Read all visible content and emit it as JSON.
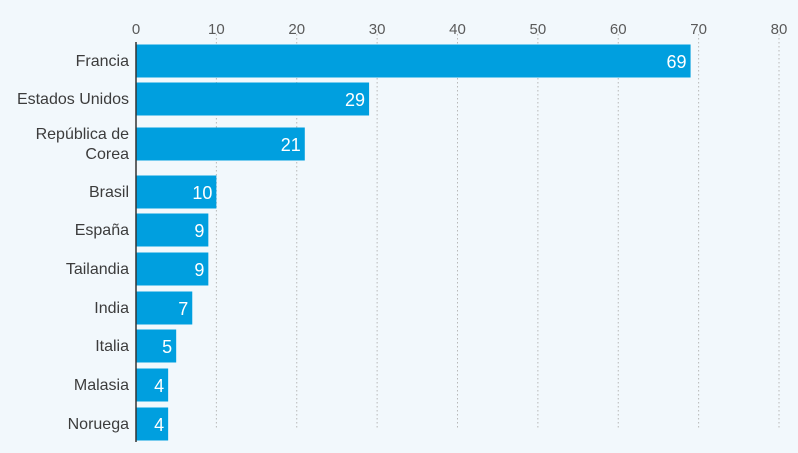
{
  "chart_data": {
    "type": "bar",
    "orientation": "horizontal",
    "categories": [
      [
        "Francia"
      ],
      [
        "Estados Unidos"
      ],
      [
        "República de",
        "Corea"
      ],
      [
        "Brasil"
      ],
      [
        "España"
      ],
      [
        "Tailandia"
      ],
      [
        "India"
      ],
      [
        "Italia"
      ],
      [
        "Malasia"
      ],
      [
        "Noruega"
      ]
    ],
    "values": [
      69,
      29,
      21,
      10,
      9,
      9,
      7,
      5,
      4,
      4
    ],
    "xlim": [
      0,
      80
    ],
    "xticks": [
      0,
      10,
      20,
      30,
      40,
      50,
      60,
      70,
      80
    ],
    "axis_position": "top",
    "grid": "vertical dotted",
    "colors": {
      "bar": "#009fdf",
      "background": "#f2f8fc",
      "grid": "#b8b8b8",
      "axis": "#333333",
      "value_text": "#ffffff"
    }
  }
}
